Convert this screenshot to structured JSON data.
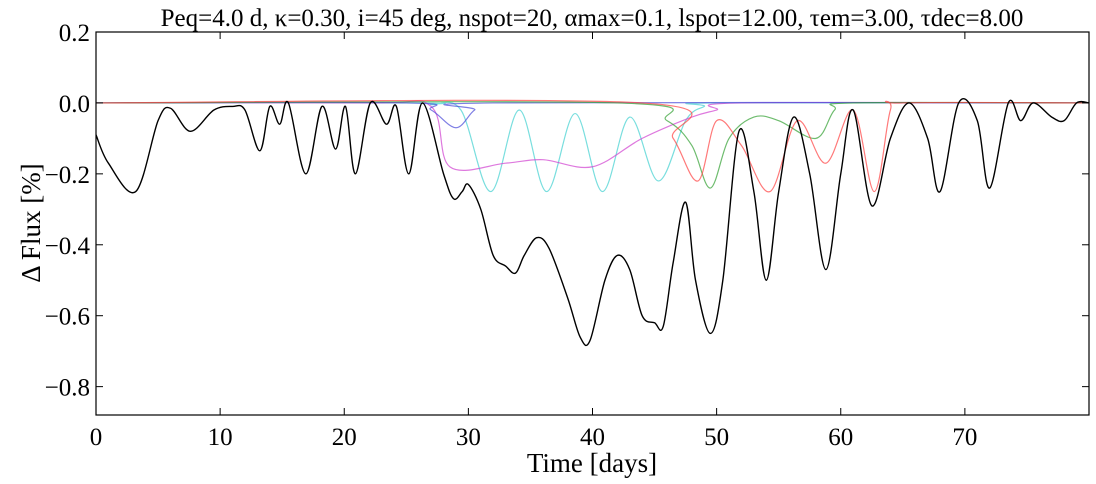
{
  "chart_data": {
    "type": "line",
    "title": "Peq=4.0 d, κ=0.30, i=45 deg, nspot=20, αmax=0.1, lspot=12.00, τem=3.00, τdec=8.00",
    "xlabel": "Time [days]",
    "ylabel": "Δ Flux [%]",
    "xlim": [
      0,
      80
    ],
    "ylim": [
      -0.88,
      0.2
    ],
    "xticks": [
      0,
      10,
      20,
      30,
      40,
      50,
      60,
      70
    ],
    "yticks": [
      0.2,
      {
        "value": 0.0,
        "label": "0.0"
      },
      {
        "value": -0.2,
        "label": "−0.2"
      },
      {
        "value": -0.4,
        "label": "−0.4"
      },
      {
        "value": -0.6,
        "label": "−0.6"
      },
      {
        "value": -0.8,
        "label": "−0.8"
      }
    ],
    "series": [
      {
        "color": "#40d0d0",
        "x": [
          0,
          26,
          27,
          29.4,
          31.8,
          34.1,
          36.3,
          38.6,
          40.8,
          43,
          45.3,
          47.5,
          49,
          50,
          80
        ],
        "values": [
          0,
          0,
          -0.005,
          -0.02,
          -0.25,
          -0.02,
          -0.25,
          -0.03,
          -0.25,
          -0.04,
          -0.22,
          -0.05,
          -0.01,
          0,
          0
        ]
      },
      {
        "color": "#d040d0",
        "x": [
          0,
          22,
          27,
          28.5,
          33,
          36,
          40,
          44,
          48,
          50,
          52,
          80
        ],
        "values": [
          0,
          0,
          -0.01,
          -0.18,
          -0.17,
          -0.16,
          -0.18,
          -0.1,
          -0.04,
          -0.02,
          0,
          0
        ]
      },
      {
        "color": "#4848d8",
        "x": [
          0,
          25,
          27,
          29,
          30.5,
          32,
          80
        ],
        "values": [
          0,
          0,
          -0.02,
          -0.07,
          -0.02,
          0,
          0
        ]
      },
      {
        "color": "#30a030",
        "x": [
          0,
          42,
          46,
          48,
          49.5,
          51,
          53,
          55,
          58,
          59.5,
          61,
          80
        ],
        "values": [
          0,
          0,
          -0.05,
          -0.12,
          -0.24,
          -0.1,
          -0.04,
          -0.05,
          -0.1,
          -0.02,
          0,
          0
        ]
      },
      {
        "color": "#ff4040",
        "x": [
          0,
          44,
          46.5,
          48.5,
          50,
          52,
          54.3,
          56.5,
          58.8,
          61,
          62.7,
          64,
          65,
          80
        ],
        "values": [
          0,
          0,
          -0.1,
          -0.22,
          -0.05,
          -0.12,
          -0.25,
          -0.05,
          -0.17,
          -0.02,
          -0.25,
          -0.02,
          0,
          0
        ]
      },
      {
        "color": "#000000",
        "x": [
          0,
          1,
          3.2,
          5,
          6,
          7.6,
          9.5,
          11,
          12,
          13.2,
          14,
          14.8,
          15.5,
          16.9,
          18.2,
          19.3,
          20.1,
          20.9,
          22.1,
          23.4,
          24.2,
          25.2,
          26.3,
          28,
          28.8,
          29.5,
          30,
          31,
          32,
          33,
          33.8,
          34.5,
          35.5,
          36.5,
          38,
          39,
          39.8,
          41,
          42,
          43,
          44,
          45,
          45.7,
          46.5,
          47.5,
          48.3,
          49.5,
          50.5,
          51.8,
          53,
          54,
          55,
          56.2,
          57.5,
          58.8,
          60,
          61,
          62.5,
          64,
          65.5,
          67,
          68,
          69.5,
          71,
          72,
          73.5,
          74.5,
          75.5,
          77,
          78,
          79,
          80
        ],
        "values": [
          -0.09,
          -0.17,
          -0.25,
          -0.05,
          -0.015,
          -0.08,
          -0.02,
          -0.01,
          -0.02,
          -0.135,
          -0.01,
          -0.06,
          0.0,
          -0.2,
          -0.01,
          -0.13,
          -0.01,
          -0.2,
          0.0,
          -0.06,
          -0.01,
          -0.2,
          0.0,
          -0.2,
          -0.27,
          -0.25,
          -0.23,
          -0.3,
          -0.43,
          -0.46,
          -0.48,
          -0.43,
          -0.38,
          -0.41,
          -0.55,
          -0.66,
          -0.67,
          -0.5,
          -0.43,
          -0.47,
          -0.6,
          -0.62,
          -0.63,
          -0.45,
          -0.28,
          -0.5,
          -0.65,
          -0.5,
          -0.08,
          -0.25,
          -0.5,
          -0.25,
          -0.04,
          -0.2,
          -0.47,
          -0.2,
          -0.02,
          -0.29,
          -0.1,
          0.0,
          -0.1,
          -0.25,
          0.0,
          -0.05,
          -0.24,
          0.0,
          -0.05,
          0.0,
          -0.04,
          -0.05,
          0.0,
          0.0
        ]
      }
    ]
  }
}
